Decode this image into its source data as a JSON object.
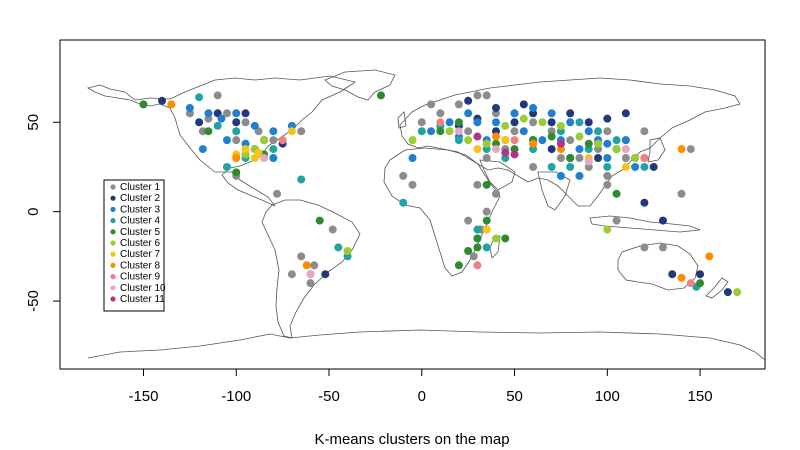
{
  "chart_data": {
    "type": "scatter",
    "title": "",
    "xlabel": "K-means clusters on the map",
    "ylabel": "",
    "xlim": [
      -195,
      185
    ],
    "ylim": [
      -88,
      96
    ],
    "xticks": [
      -150,
      -100,
      -50,
      0,
      50,
      100,
      150
    ],
    "yticks": [
      -50,
      0,
      50
    ],
    "grid": false,
    "legend_position": "left",
    "series": [
      {
        "name": "Cluster 1",
        "color": "#8C8C8C",
        "points": [
          [
            -115,
            52
          ],
          [
            -105,
            55
          ],
          [
            -95,
            50
          ],
          [
            -118,
            45
          ],
          [
            -88,
            45
          ],
          [
            -80,
            40
          ],
          [
            -100,
            40
          ],
          [
            -65,
            45
          ],
          [
            -125,
            55
          ],
          [
            -110,
            65
          ],
          [
            -100,
            20
          ],
          [
            -78,
            10
          ],
          [
            -65,
            -25
          ],
          [
            -70,
            -35
          ],
          [
            -60,
            -40
          ],
          [
            -58,
            -30
          ],
          [
            -48,
            -10
          ],
          [
            -10,
            20
          ],
          [
            -5,
            15
          ],
          [
            25,
            -5
          ],
          [
            30,
            -15
          ],
          [
            28,
            -25
          ],
          [
            32,
            -10
          ],
          [
            35,
            0
          ],
          [
            40,
            10
          ],
          [
            30,
            15
          ],
          [
            35,
            30
          ],
          [
            45,
            35
          ],
          [
            50,
            45
          ],
          [
            60,
            50
          ],
          [
            70,
            45
          ],
          [
            80,
            40
          ],
          [
            90,
            45
          ],
          [
            100,
            45
          ],
          [
            110,
            40
          ],
          [
            120,
            45
          ],
          [
            110,
            30
          ],
          [
            100,
            20
          ],
          [
            90,
            25
          ],
          [
            85,
            30
          ],
          [
            75,
            30
          ],
          [
            95,
            35
          ],
          [
            120,
            30
          ],
          [
            100,
            15
          ],
          [
            105,
            -5
          ],
          [
            120,
            -20
          ],
          [
            130,
            -20
          ],
          [
            140,
            10
          ],
          [
            145,
            35
          ],
          [
            0,
            50
          ],
          [
            10,
            55
          ],
          [
            20,
            60
          ],
          [
            30,
            65
          ],
          [
            40,
            55
          ],
          [
            50,
            55
          ],
          [
            15,
            45
          ],
          [
            25,
            45
          ],
          [
            35,
            65
          ],
          [
            5,
            60
          ],
          [
            60,
            25
          ]
        ]
      },
      {
        "name": "Cluster 2",
        "color": "#23387A",
        "points": [
          [
            -140,
            62
          ],
          [
            -120,
            50
          ],
          [
            -110,
            55
          ],
          [
            -95,
            55
          ],
          [
            -90,
            35
          ],
          [
            -85,
            40
          ],
          [
            -75,
            38
          ],
          [
            -100,
            50
          ],
          [
            -52,
            -35
          ],
          [
            20,
            48
          ],
          [
            30,
            52
          ],
          [
            40,
            58
          ],
          [
            50,
            50
          ],
          [
            60,
            55
          ],
          [
            70,
            50
          ],
          [
            80,
            55
          ],
          [
            90,
            50
          ],
          [
            100,
            52
          ],
          [
            110,
            55
          ],
          [
            60,
            40
          ],
          [
            70,
            35
          ],
          [
            80,
            30
          ],
          [
            95,
            30
          ],
          [
            105,
            35
          ],
          [
            115,
            30
          ],
          [
            125,
            25
          ],
          [
            130,
            -5
          ],
          [
            120,
            5
          ],
          [
            135,
            -35
          ],
          [
            150,
            -35
          ],
          [
            165,
            -45
          ],
          [
            40,
            45
          ],
          [
            55,
            60
          ],
          [
            25,
            62
          ]
        ]
      },
      {
        "name": "Cluster 3",
        "color": "#1F7FD1",
        "points": [
          [
            -125,
            58
          ],
          [
            -115,
            55
          ],
          [
            -108,
            52
          ],
          [
            -100,
            55
          ],
          [
            -90,
            48
          ],
          [
            -80,
            45
          ],
          [
            -105,
            40
          ],
          [
            -95,
            38
          ],
          [
            -80,
            30
          ],
          [
            -70,
            48
          ],
          [
            -118,
            35
          ],
          [
            -5,
            30
          ],
          [
            20,
            42
          ],
          [
            30,
            50
          ],
          [
            40,
            50
          ],
          [
            50,
            55
          ],
          [
            60,
            58
          ],
          [
            70,
            55
          ],
          [
            80,
            50
          ],
          [
            90,
            45
          ],
          [
            95,
            40
          ],
          [
            100,
            38
          ],
          [
            110,
            40
          ],
          [
            85,
            35
          ],
          [
            75,
            40
          ],
          [
            65,
            40
          ],
          [
            55,
            45
          ],
          [
            45,
            40
          ],
          [
            35,
            40
          ],
          [
            115,
            25
          ],
          [
            100,
            30
          ],
          [
            85,
            20
          ],
          [
            75,
            20
          ],
          [
            5,
            45
          ],
          [
            15,
            50
          ],
          [
            25,
            55
          ]
        ]
      },
      {
        "name": "Cluster 4",
        "color": "#21A3A3",
        "points": [
          [
            -120,
            64
          ],
          [
            -110,
            48
          ],
          [
            -100,
            45
          ],
          [
            -95,
            30
          ],
          [
            -105,
            25
          ],
          [
            -80,
            35
          ],
          [
            -65,
            18
          ],
          [
            -45,
            -20
          ],
          [
            -60,
            -35
          ],
          [
            -40,
            -25
          ],
          [
            10,
            48
          ],
          [
            20,
            40
          ],
          [
            35,
            35
          ],
          [
            45,
            30
          ],
          [
            60,
            35
          ],
          [
            75,
            45
          ],
          [
            85,
            50
          ],
          [
            95,
            45
          ],
          [
            105,
            40
          ],
          [
            90,
            35
          ],
          [
            80,
            25
          ],
          [
            70,
            25
          ],
          [
            100,
            25
          ],
          [
            120,
            25
          ],
          [
            30,
            -10
          ],
          [
            35,
            -20
          ],
          [
            -10,
            5
          ],
          [
            0,
            45
          ],
          [
            148,
            -42
          ]
        ]
      },
      {
        "name": "Cluster 5",
        "color": "#2E8B2E",
        "points": [
          [
            -150,
            60
          ],
          [
            -22,
            65
          ],
          [
            -115,
            45
          ],
          [
            -85,
            32
          ],
          [
            -55,
            -5
          ],
          [
            -100,
            22
          ],
          [
            10,
            45
          ],
          [
            20,
            50
          ],
          [
            40,
            38
          ],
          [
            50,
            35
          ],
          [
            60,
            40
          ],
          [
            70,
            42
          ],
          [
            35,
            15
          ],
          [
            30,
            -15
          ],
          [
            25,
            -22
          ],
          [
            35,
            -5
          ],
          [
            45,
            -15
          ],
          [
            30,
            -20
          ],
          [
            20,
            -30
          ],
          [
            105,
            10
          ],
          [
            150,
            -40
          ],
          [
            80,
            30
          ],
          [
            90,
            38
          ]
        ]
      },
      {
        "name": "Cluster 6",
        "color": "#9ACD32",
        "points": [
          [
            -90,
            35
          ],
          [
            -95,
            32
          ],
          [
            -85,
            40
          ],
          [
            -40,
            -22
          ],
          [
            15,
            45
          ],
          [
            25,
            40
          ],
          [
            35,
            38
          ],
          [
            45,
            48
          ],
          [
            55,
            52
          ],
          [
            65,
            50
          ],
          [
            75,
            48
          ],
          [
            85,
            42
          ],
          [
            95,
            38
          ],
          [
            105,
            35
          ],
          [
            115,
            30
          ],
          [
            40,
            -15
          ],
          [
            170,
            -45
          ],
          [
            -5,
            40
          ],
          [
            100,
            -10
          ]
        ]
      },
      {
        "name": "Cluster 7",
        "color": "#F5C518",
        "points": [
          [
            -95,
            35
          ],
          [
            -90,
            30
          ],
          [
            -88,
            33
          ],
          [
            -100,
            32
          ],
          [
            -70,
            45
          ],
          [
            30,
            35
          ],
          [
            45,
            40
          ],
          [
            90,
            30
          ],
          [
            110,
            25
          ],
          [
            35,
            -10
          ]
        ]
      },
      {
        "name": "Cluster 8",
        "color": "#FF8C00",
        "points": [
          [
            -135,
            60
          ],
          [
            -100,
            30
          ],
          [
            -62,
            -30
          ],
          [
            40,
            42
          ],
          [
            60,
            38
          ],
          [
            75,
            35
          ],
          [
            140,
            35
          ],
          [
            140,
            -37
          ],
          [
            155,
            -25
          ]
        ]
      },
      {
        "name": "Cluster 9",
        "color": "#F08080",
        "points": [
          [
            -75,
            40
          ],
          [
            10,
            50
          ],
          [
            50,
            40
          ],
          [
            120,
            30
          ],
          [
            145,
            -40
          ],
          [
            30,
            -30
          ]
        ]
      },
      {
        "name": "Cluster 10",
        "color": "#E6A6C6",
        "points": [
          [
            -85,
            30
          ],
          [
            20,
            45
          ],
          [
            40,
            35
          ],
          [
            90,
            28
          ],
          [
            110,
            35
          ],
          [
            -60,
            -35
          ]
        ]
      },
      {
        "name": "Cluster 11",
        "color": "#B03582",
        "points": [
          [
            45,
            33
          ],
          [
            50,
            32
          ],
          [
            30,
            42
          ],
          [
            75,
            38
          ]
        ]
      }
    ]
  },
  "legend": {
    "entries": [
      {
        "label": "Cluster 1",
        "color": "#8C8C8C"
      },
      {
        "label": "Cluster 2",
        "color": "#23387A"
      },
      {
        "label": "Cluster 3",
        "color": "#1F7FD1"
      },
      {
        "label": "Cluster 4",
        "color": "#21A3A3"
      },
      {
        "label": "Cluster 5",
        "color": "#2E8B2E"
      },
      {
        "label": "Cluster 6",
        "color": "#9ACD32"
      },
      {
        "label": "Cluster 7",
        "color": "#F5C518"
      },
      {
        "label": "Cluster 8",
        "color": "#FF8C00"
      },
      {
        "label": "Cluster 9",
        "color": "#F08080"
      },
      {
        "label": "Cluster 10",
        "color": "#E6A6C6"
      },
      {
        "label": "Cluster 11",
        "color": "#B03582"
      }
    ]
  },
  "caption": "K-means clusters on the map"
}
